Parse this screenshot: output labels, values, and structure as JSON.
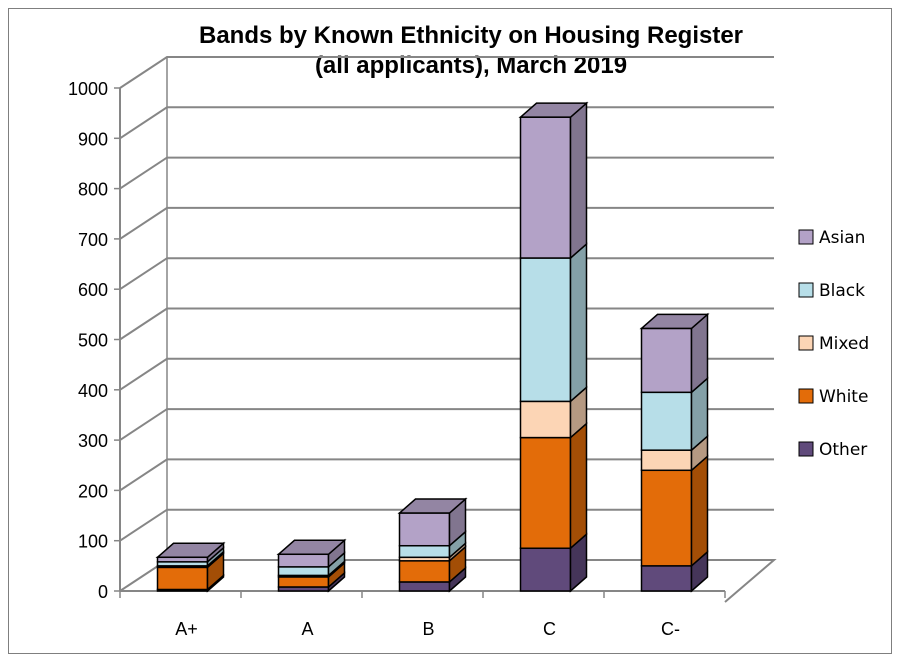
{
  "chart_data": {
    "type": "bar",
    "stacked": true,
    "style": "3d",
    "title": "Bands by Known Ethnicity on Housing Register",
    "subtitle": "(all applicants), March 2019",
    "categories": [
      "A+",
      "A",
      "B",
      "C",
      "C-"
    ],
    "series": [
      {
        "name": "Other",
        "color": "#604a7b",
        "values": [
          3,
          8,
          18,
          85,
          50
        ]
      },
      {
        "name": "White",
        "color": "#e36c09",
        "values": [
          44,
          20,
          42,
          220,
          190
        ]
      },
      {
        "name": "Mixed",
        "color": "#fcd5b5",
        "values": [
          3,
          3,
          7,
          72,
          40
        ]
      },
      {
        "name": "Black",
        "color": "#b7dee8",
        "values": [
          8,
          17,
          23,
          285,
          115
        ]
      },
      {
        "name": "Asian",
        "color": "#b3a2c7",
        "values": [
          9,
          25,
          65,
          280,
          127
        ]
      }
    ],
    "legend_order": [
      "Asian",
      "Black",
      "Mixed",
      "White",
      "Other"
    ],
    "legend_position": "right",
    "ylim": [
      0,
      1000
    ],
    "yticks": [
      0,
      100,
      200,
      300,
      400,
      500,
      600,
      700,
      800,
      900,
      1000
    ],
    "grid": true,
    "xlabel": "",
    "ylabel": ""
  }
}
